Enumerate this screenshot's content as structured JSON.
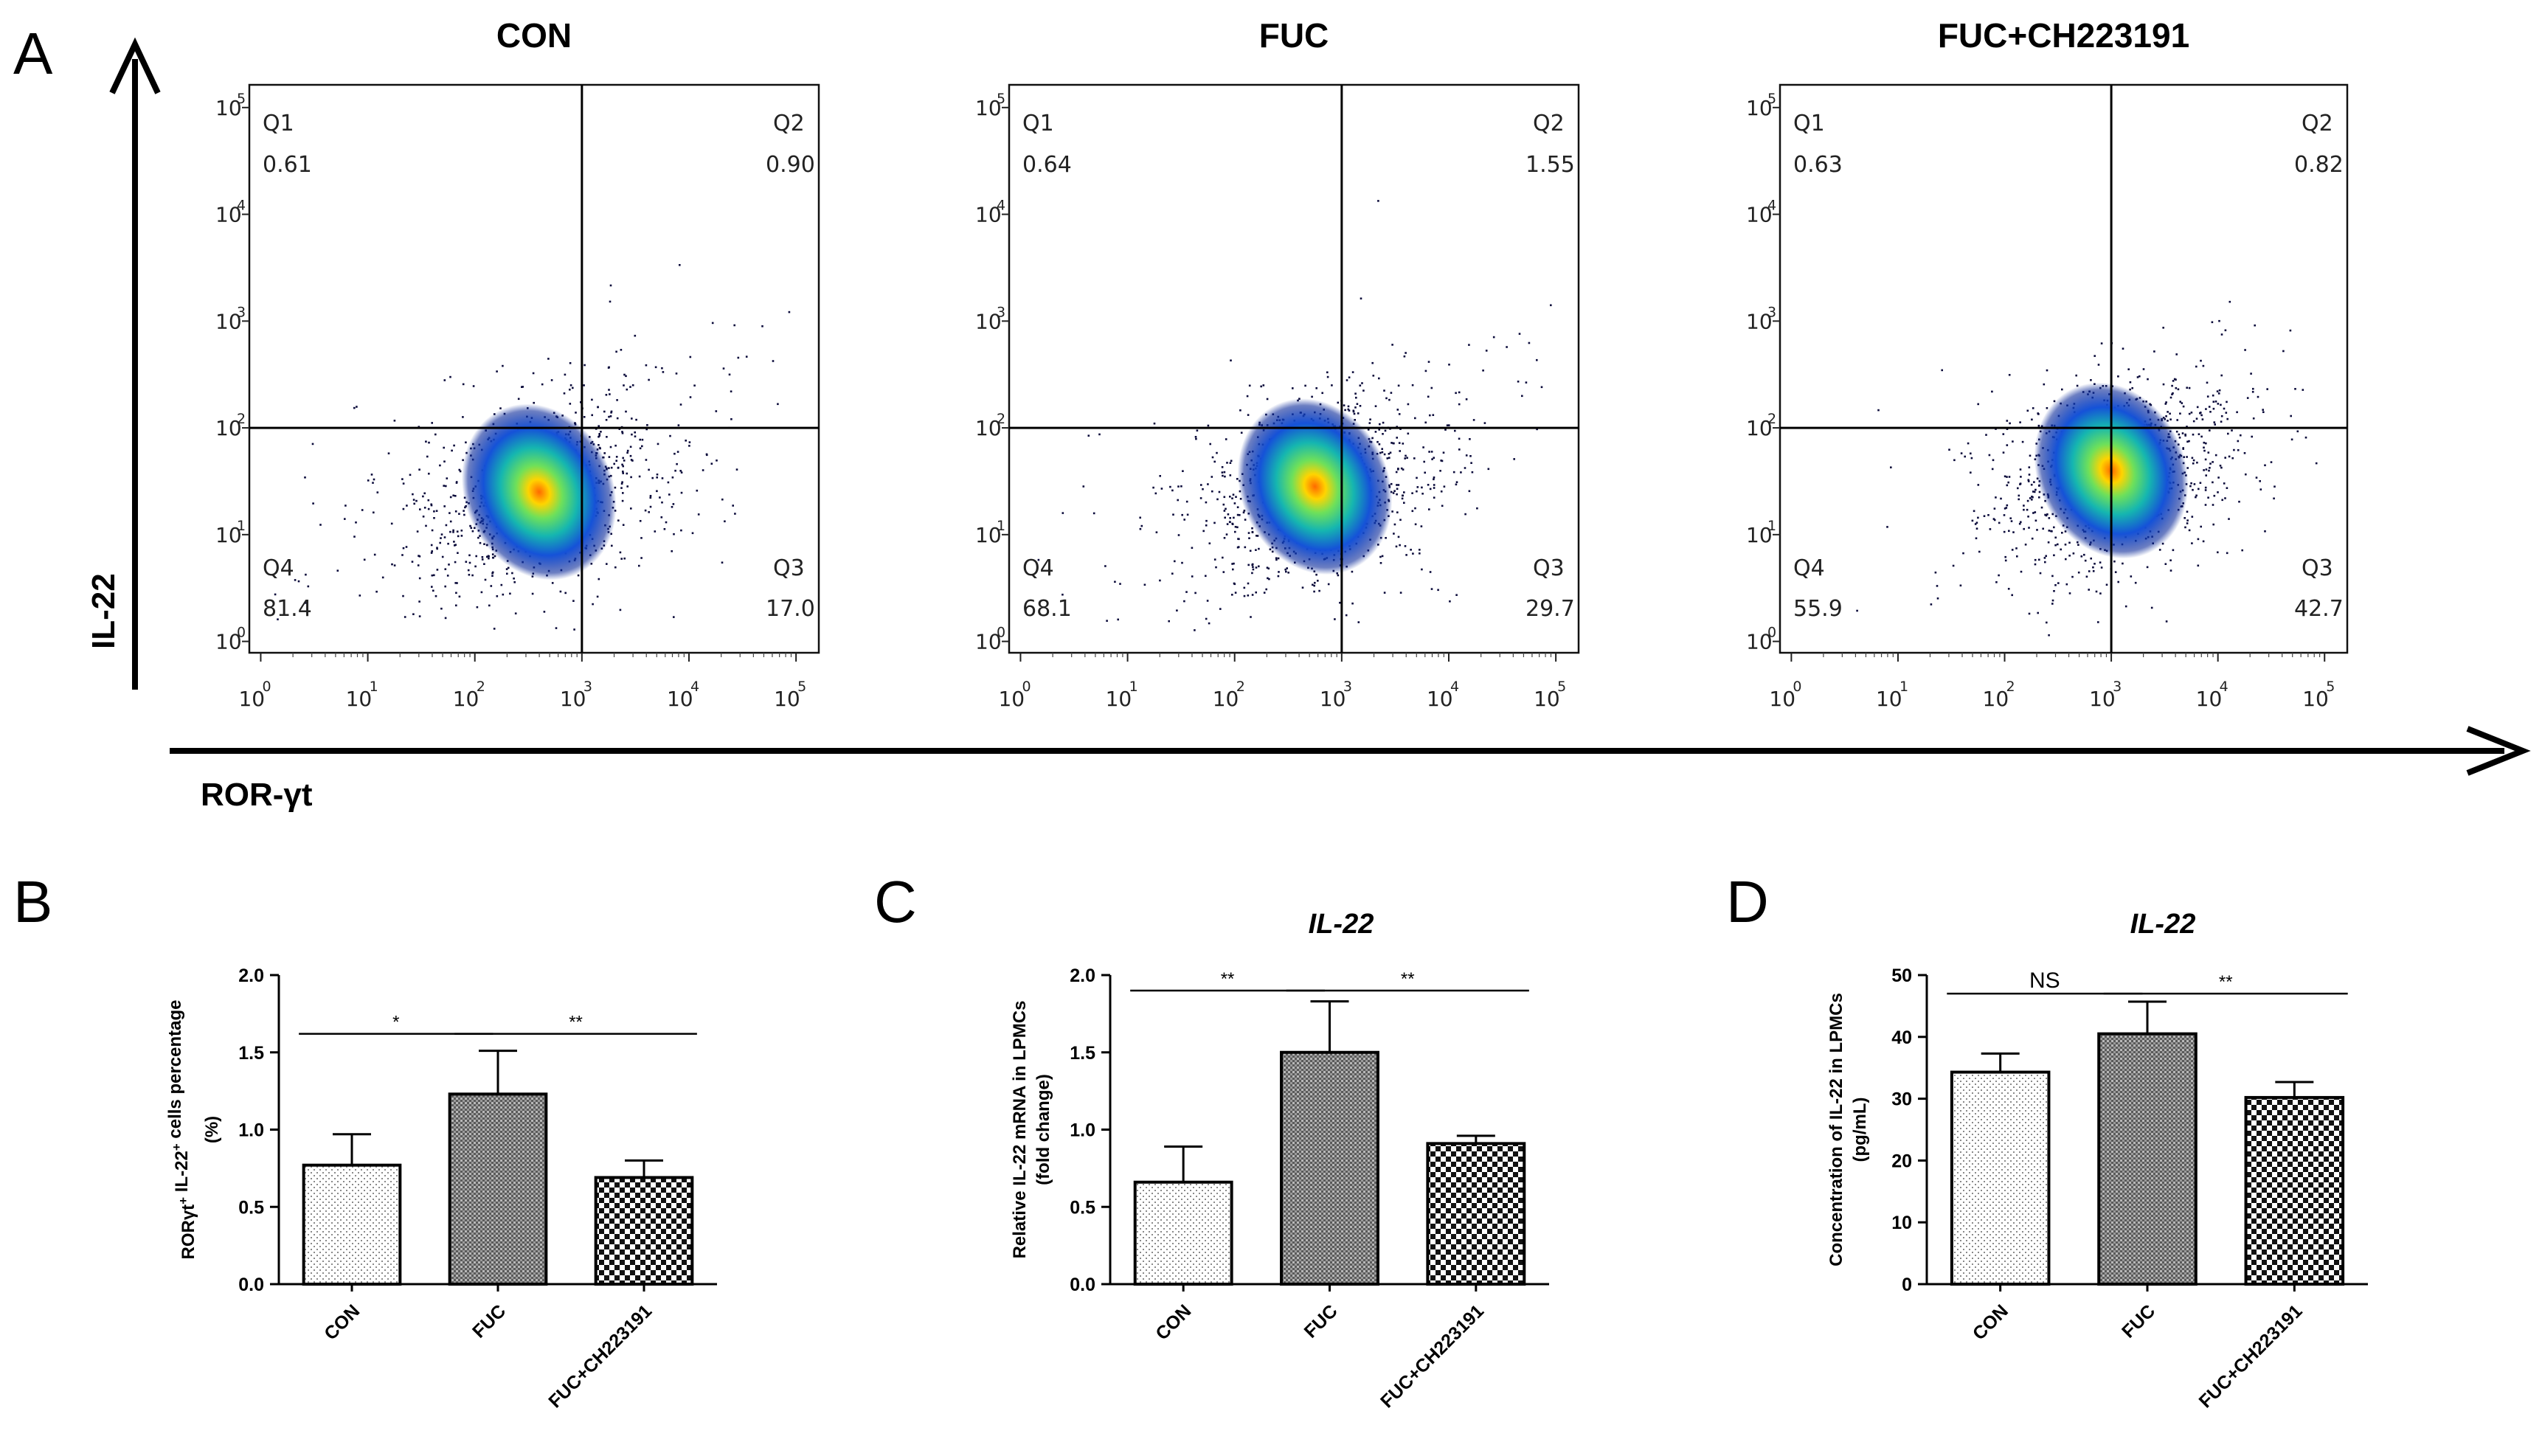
{
  "figure": {
    "panel_labels": [
      "A",
      "B",
      "C",
      "D"
    ]
  },
  "chart_data": [
    {
      "type": "scatter",
      "panel": "A",
      "subtype": "flow-cytometry density plots",
      "x_axis_label": "ROR-γt",
      "y_axis_label": "IL-22",
      "tick_labels": [
        "10",
        "10",
        "10",
        "10",
        "10",
        "10"
      ],
      "tick_exponents": [
        "0",
        "1",
        "2",
        "3",
        "4",
        "5"
      ],
      "plots": [
        {
          "title": "CON",
          "quadrants": {
            "Q1": "0.61",
            "Q2": "0.90",
            "Q3": "17.0",
            "Q4": "81.4"
          },
          "population_center_log": [
            2.6,
            1.4
          ]
        },
        {
          "title": "FUC",
          "quadrants": {
            "Q1": "0.64",
            "Q2": "1.55",
            "Q3": "29.7",
            "Q4": "68.1"
          },
          "population_center_log": [
            2.75,
            1.45
          ]
        },
        {
          "title": "FUC+CH223191",
          "quadrants": {
            "Q1": "0.63",
            "Q2": "0.82",
            "Q3": "42.7",
            "Q4": "55.9"
          },
          "population_center_log": [
            3.0,
            1.6
          ]
        }
      ]
    },
    {
      "type": "bar",
      "panel": "B",
      "title": "",
      "ylabel_main": "RORγt",
      "ylabel_sup1": "+",
      "ylabel_mid": " IL-22",
      "ylabel_sup2": "+",
      "ylabel_end": " cells percentage",
      "ylabel_line2": "(%)",
      "categories": [
        "CON",
        "FUC",
        "FUC+CH223191"
      ],
      "values": [
        0.77,
        1.23,
        0.69
      ],
      "errors": [
        0.2,
        0.28,
        0.11
      ],
      "ylim": [
        0,
        2.0
      ],
      "yticks": [
        "0.0",
        "0.5",
        "1.0",
        "1.5",
        "2.0"
      ],
      "significance": [
        {
          "from": 0,
          "to": 1,
          "label": "*"
        },
        {
          "from": 1,
          "to": 2,
          "label": "**"
        }
      ]
    },
    {
      "type": "bar",
      "panel": "C",
      "title": "IL-22",
      "ylabel_main": "Relative IL-22 mRNA in LPMCs",
      "ylabel_line2": "(fold change)",
      "categories": [
        "CON",
        "FUC",
        "FUC+CH223191"
      ],
      "values": [
        0.66,
        1.5,
        0.91
      ],
      "errors": [
        0.23,
        0.33,
        0.05
      ],
      "ylim": [
        0,
        2.0
      ],
      "yticks": [
        "0.0",
        "0.5",
        "1.0",
        "1.5",
        "2.0"
      ],
      "significance": [
        {
          "from": 0,
          "to": 1,
          "label": "**"
        },
        {
          "from": 1,
          "to": 2,
          "label": "**"
        }
      ]
    },
    {
      "type": "bar",
      "panel": "D",
      "title": "IL-22",
      "ylabel_main": "Concentration of IL-22 in LPMCs",
      "ylabel_line2": "(pg/mL)",
      "categories": [
        "CON",
        "FUC",
        "FUC+CH223191"
      ],
      "values": [
        34.3,
        40.5,
        30.2
      ],
      "errors": [
        3.0,
        5.2,
        2.5
      ],
      "ylim": [
        0,
        50
      ],
      "yticks": [
        "0",
        "10",
        "20",
        "30",
        "40",
        "50"
      ],
      "significance": [
        {
          "from": 0,
          "to": 1,
          "label": "NS"
        },
        {
          "from": 1,
          "to": 2,
          "label": "**"
        }
      ]
    }
  ]
}
